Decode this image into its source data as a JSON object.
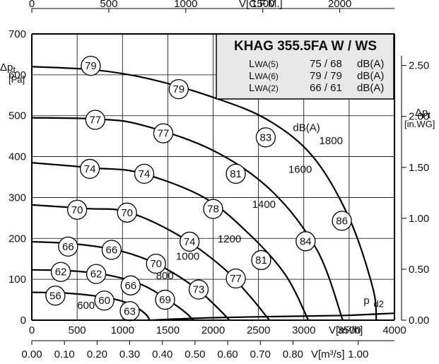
{
  "chart_data": {
    "type": "line",
    "title": "KHAG 355.5FA W / WS",
    "noise_table": [
      {
        "label": "LWA(5)",
        "label_main": "L",
        "label_sub": "WA(5)",
        "value": "75 / 68",
        "unit": "dB(A)"
      },
      {
        "label": "LWA(6)",
        "label_main": "L",
        "label_sub": "WA(6)",
        "value": "79 / 79",
        "unit": "dB(A)"
      },
      {
        "label": "LWA(2)",
        "label_main": "L",
        "label_sub": "WA(2)",
        "value": "66 / 61",
        "unit": "dB(A)"
      }
    ],
    "axes": {
      "x_bottom": {
        "label": "V[m³/h]",
        "range": [
          0,
          4000
        ],
        "ticks": [
          0,
          500,
          1000,
          1500,
          2000,
          2500,
          3000,
          3500,
          4000
        ]
      },
      "x_top": {
        "label": "V[C.F.M.]",
        "range": [
          0,
          2355
        ],
        "ticks": [
          0,
          500,
          1000,
          1500,
          2000
        ]
      },
      "x_second_bottom": {
        "label": "V[m³/s]",
        "range": [
          0,
          1.111
        ],
        "ticks": [
          "0.00",
          "0.10",
          "0.20",
          "0.30",
          "0.40",
          "0.50",
          "0.60",
          "0.70",
          "0.80",
          "1.00"
        ]
      },
      "y_left": {
        "label": "Δpt",
        "label_main": "Δp",
        "label_sub": "t",
        "unit": "[Pa]",
        "range": [
          0,
          700
        ],
        "ticks": [
          0,
          100,
          200,
          300,
          400,
          500,
          600,
          700
        ]
      },
      "y_right": {
        "label": "Δpt",
        "label_main": "Δp",
        "label_sub": "t",
        "unit": "[in.WG]",
        "range": [
          0,
          2.81
        ],
        "ticks": [
          "0.00",
          "0.50",
          "1.00",
          "1.50",
          "2.00",
          "2.50"
        ]
      }
    },
    "grid": true,
    "series": [
      {
        "name": "600",
        "points": [
          [
            0,
            68
          ],
          [
            300,
            67
          ],
          [
            600,
            62
          ],
          [
            900,
            52
          ],
          [
            1100,
            38
          ],
          [
            1250,
            16
          ],
          [
            1300,
            0
          ]
        ]
      },
      {
        "name": "800",
        "points": [
          [
            0,
            123
          ],
          [
            400,
            121
          ],
          [
            800,
            112
          ],
          [
            1200,
            88
          ],
          [
            1500,
            50
          ],
          [
            1700,
            18
          ],
          [
            1780,
            0
          ]
        ]
      },
      {
        "name": "1000",
        "points": [
          [
            0,
            192
          ],
          [
            500,
            186
          ],
          [
            1000,
            168
          ],
          [
            1400,
            135
          ],
          [
            1800,
            80
          ],
          [
            2050,
            30
          ],
          [
            2180,
            0
          ]
        ]
      },
      {
        "name": "1200",
        "points": [
          [
            0,
            282
          ],
          [
            600,
            273
          ],
          [
            1050,
            265
          ],
          [
            1600,
            210
          ],
          [
            2100,
            130
          ],
          [
            2400,
            60
          ],
          [
            2620,
            0
          ]
        ]
      },
      {
        "name": "1400",
        "points": [
          [
            0,
            385
          ],
          [
            700,
            372
          ],
          [
            1200,
            360
          ],
          [
            1900,
            300
          ],
          [
            2400,
            210
          ],
          [
            2800,
            110
          ],
          [
            3050,
            0
          ]
        ]
      },
      {
        "name": "1600",
        "points": [
          [
            0,
            495
          ],
          [
            700,
            492
          ],
          [
            1200,
            478
          ],
          [
            2000,
            415
          ],
          [
            2650,
            315
          ],
          [
            3150,
            170
          ],
          [
            3430,
            0
          ]
        ]
      },
      {
        "name": "1800",
        "points": [
          [
            0,
            620
          ],
          [
            700,
            612
          ],
          [
            1300,
            590
          ],
          [
            2000,
            545
          ],
          [
            2600,
            490
          ],
          [
            3100,
            400
          ],
          [
            3500,
            250
          ],
          [
            3760,
            80
          ],
          [
            3800,
            0
          ]
        ]
      },
      {
        "name": "pd2",
        "points": [
          [
            1300,
            0
          ],
          [
            2000,
            6
          ],
          [
            3000,
            10
          ],
          [
            3500,
            12
          ],
          [
            4000,
            17
          ]
        ]
      }
    ],
    "labels": [
      {
        "text": "600",
        "x": 500,
        "y": 28
      },
      {
        "text": "800",
        "x": 1370,
        "y": 100
      },
      {
        "text": "1000",
        "x": 1590,
        "y": 148
      },
      {
        "text": "1200",
        "x": 2050,
        "y": 190
      },
      {
        "text": "1400",
        "x": 2430,
        "y": 275
      },
      {
        "text": "1600",
        "x": 2830,
        "y": 360
      },
      {
        "text": "1800",
        "x": 3170,
        "y": 430
      },
      {
        "text": "dB(A)",
        "x": 2880,
        "y": 462
      },
      {
        "text": "p",
        "x": 3660,
        "y": 40
      },
      {
        "text": "d2",
        "x": 3770,
        "y": 32
      }
    ],
    "noise_badges": [
      {
        "value": "79",
        "x": 650,
        "y": 622
      },
      {
        "value": "79",
        "x": 1620,
        "y": 565
      },
      {
        "value": "77",
        "x": 700,
        "y": 490
      },
      {
        "value": "77",
        "x": 1450,
        "y": 457
      },
      {
        "value": "83",
        "x": 2580,
        "y": 447
      },
      {
        "value": "74",
        "x": 640,
        "y": 370
      },
      {
        "value": "74",
        "x": 1240,
        "y": 358
      },
      {
        "value": "81",
        "x": 2250,
        "y": 358
      },
      {
        "value": "70",
        "x": 500,
        "y": 270
      },
      {
        "value": "70",
        "x": 1050,
        "y": 263
      },
      {
        "value": "78",
        "x": 2000,
        "y": 272
      },
      {
        "value": "86",
        "x": 3420,
        "y": 243
      },
      {
        "value": "66",
        "x": 400,
        "y": 180
      },
      {
        "value": "66",
        "x": 880,
        "y": 172
      },
      {
        "value": "74",
        "x": 1740,
        "y": 192
      },
      {
        "value": "84",
        "x": 3020,
        "y": 193
      },
      {
        "value": "62",
        "x": 320,
        "y": 118
      },
      {
        "value": "62",
        "x": 710,
        "y": 113
      },
      {
        "value": "70",
        "x": 1370,
        "y": 138
      },
      {
        "value": "81",
        "x": 2530,
        "y": 147
      },
      {
        "value": "56",
        "x": 260,
        "y": 60
      },
      {
        "value": "60",
        "x": 800,
        "y": 48
      },
      {
        "value": "66",
        "x": 1090,
        "y": 85
      },
      {
        "value": "77",
        "x": 2250,
        "y": 102
      },
      {
        "value": "63",
        "x": 1080,
        "y": 22
      },
      {
        "value": "69",
        "x": 1470,
        "y": 50
      },
      {
        "value": "73",
        "x": 1840,
        "y": 75
      }
    ]
  }
}
